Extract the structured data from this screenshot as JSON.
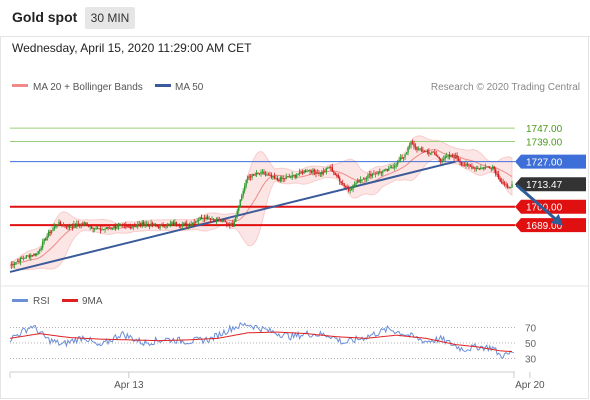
{
  "header": {
    "title": "Gold spot",
    "timeframe": "30 MIN"
  },
  "datetime": "Wednesday, April 15, 2020 11:29:00 AM CET",
  "source": "Research © 2020 Trading Central",
  "colors": {
    "bollinger": "#f08a8a",
    "ma50": "#3a5a99",
    "rsi": "#6b8fd6",
    "rsi_ma": "#e02020",
    "green_line": "#9ccf7a",
    "blue_level": "#3e6fd8",
    "red_level": "#e01010",
    "candle_up": "#2a9a2a",
    "candle_down": "#d41c1c",
    "arrow": "#2e5e9a"
  },
  "chart_data": [
    {
      "type": "candlestick",
      "legend": [
        {
          "name": "MA 20 + Bollinger Bands",
          "color": "#f08a8a"
        },
        {
          "name": "MA 50",
          "color": "#3a5a99"
        }
      ],
      "ylim": [
        1655,
        1765
      ],
      "x_ticks": [
        {
          "label": "Apr 13",
          "x": 80
        },
        {
          "label": "Apr 20",
          "x": 350
        }
      ],
      "levels": [
        {
          "value": 1747.0,
          "label": "1747.00",
          "style": "green"
        },
        {
          "value": 1739.0,
          "label": "1739.00",
          "style": "green"
        },
        {
          "value": 1727.0,
          "label": "1727.00",
          "style": "blue"
        },
        {
          "value": 1713.47,
          "label": "1713.47",
          "style": "current"
        },
        {
          "value": 1700.0,
          "label": "1700.00",
          "style": "red"
        },
        {
          "value": 1689.0,
          "label": "1689.00",
          "style": "red"
        }
      ],
      "close_anchors": [
        [
          0,
          1665
        ],
        [
          10,
          1670
        ],
        [
          18,
          1672
        ],
        [
          26,
          1684
        ],
        [
          32,
          1690
        ],
        [
          40,
          1688
        ],
        [
          50,
          1690
        ],
        [
          60,
          1686
        ],
        [
          70,
          1688
        ],
        [
          80,
          1688
        ],
        [
          90,
          1690
        ],
        [
          100,
          1688
        ],
        [
          110,
          1690
        ],
        [
          120,
          1689
        ],
        [
          130,
          1694
        ],
        [
          140,
          1692
        ],
        [
          150,
          1689
        ],
        [
          155,
          1704
        ],
        [
          160,
          1718
        ],
        [
          170,
          1720
        ],
        [
          180,
          1716
        ],
        [
          190,
          1718
        ],
        [
          200,
          1722
        ],
        [
          210,
          1720
        ],
        [
          215,
          1724
        ],
        [
          220,
          1718
        ],
        [
          228,
          1710
        ],
        [
          235,
          1716
        ],
        [
          245,
          1720
        ],
        [
          255,
          1722
        ],
        [
          265,
          1730
        ],
        [
          270,
          1738
        ],
        [
          275,
          1734
        ],
        [
          285,
          1732
        ],
        [
          290,
          1728
        ],
        [
          295,
          1730
        ],
        [
          300,
          1730
        ],
        [
          305,
          1725
        ],
        [
          315,
          1723
        ],
        [
          325,
          1724
        ],
        [
          330,
          1716
        ],
        [
          335,
          1711
        ],
        [
          338,
          1713.47
        ]
      ],
      "ma50_endpoints": [
        [
          0,
          1661
        ],
        [
          300,
          1727
        ]
      ],
      "projection_arrow": {
        "from": [
          337,
          1713
        ],
        "to": [
          372,
          1691
        ]
      }
    },
    {
      "type": "line",
      "series": [
        {
          "name": "RSI",
          "color": "#6b8fd6"
        },
        {
          "name": "9MA",
          "color": "#e02020"
        }
      ],
      "y_ticks": [
        70,
        50,
        30
      ],
      "ylim": [
        18,
        82
      ],
      "rsi_anchors": [
        [
          0,
          55
        ],
        [
          15,
          72
        ],
        [
          25,
          55
        ],
        [
          35,
          48
        ],
        [
          50,
          58
        ],
        [
          60,
          45
        ],
        [
          75,
          62
        ],
        [
          90,
          50
        ],
        [
          105,
          55
        ],
        [
          120,
          52
        ],
        [
          135,
          55
        ],
        [
          150,
          70
        ],
        [
          160,
          74
        ],
        [
          175,
          65
        ],
        [
          190,
          58
        ],
        [
          200,
          62
        ],
        [
          215,
          60
        ],
        [
          225,
          50
        ],
        [
          240,
          58
        ],
        [
          255,
          68
        ],
        [
          265,
          62
        ],
        [
          280,
          52
        ],
        [
          290,
          55
        ],
        [
          305,
          42
        ],
        [
          315,
          45
        ],
        [
          325,
          44
        ],
        [
          330,
          34
        ],
        [
          335,
          35
        ],
        [
          338,
          38
        ]
      ],
      "ma_anchors": [
        [
          0,
          56
        ],
        [
          20,
          62
        ],
        [
          40,
          57
        ],
        [
          60,
          55
        ],
        [
          80,
          54
        ],
        [
          100,
          53
        ],
        [
          120,
          54
        ],
        [
          140,
          56
        ],
        [
          160,
          63
        ],
        [
          180,
          64
        ],
        [
          200,
          62
        ],
        [
          220,
          58
        ],
        [
          240,
          56
        ],
        [
          260,
          60
        ],
        [
          280,
          56
        ],
        [
          300,
          48
        ],
        [
          315,
          45
        ],
        [
          330,
          40
        ],
        [
          338,
          39
        ]
      ],
      "rsi_last": 38
    }
  ]
}
